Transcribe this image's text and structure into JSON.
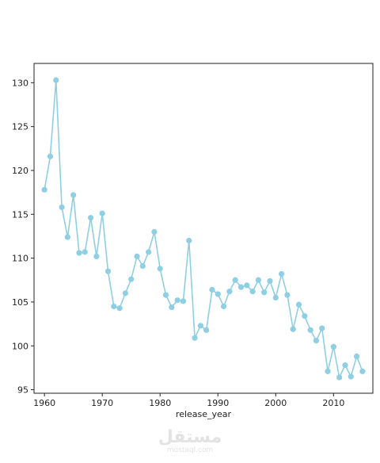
{
  "chart_data": {
    "type": "line",
    "xlabel": "release_year",
    "ylabel": "",
    "xlim": [
      1958.2,
      2016.8
    ],
    "ylim": [
      94.6,
      132.2
    ],
    "xticks": [
      1960,
      1970,
      1980,
      1990,
      2000,
      2010
    ],
    "yticks": [
      95,
      100,
      105,
      110,
      115,
      120,
      125,
      130
    ],
    "grid": false,
    "color": "#8ecfe3",
    "series": [
      {
        "x": [
          1960,
          1961,
          1962,
          1963,
          1964,
          1965,
          1966,
          1967,
          1968,
          1969,
          1970,
          1971,
          1972,
          1973,
          1974,
          1975,
          1976,
          1977,
          1978,
          1979,
          1980,
          1981,
          1982,
          1983,
          1984,
          1985,
          1986,
          1987,
          1988,
          1989,
          1990,
          1991,
          1992,
          1993,
          1994,
          1995,
          1996,
          1997,
          1998,
          1999,
          2000,
          2001,
          2002,
          2003,
          2004,
          2005,
          2006,
          2007,
          2008,
          2009,
          2010,
          2011,
          2012,
          2013,
          2014,
          2015
        ],
        "values": [
          117.8,
          121.6,
          130.3,
          115.8,
          112.4,
          117.2,
          110.6,
          110.7,
          114.6,
          110.2,
          115.1,
          108.5,
          104.5,
          104.3,
          106.0,
          107.6,
          110.2,
          109.1,
          110.7,
          113.0,
          108.8,
          105.8,
          104.4,
          105.2,
          105.1,
          112.0,
          100.9,
          102.3,
          101.8,
          106.4,
          105.9,
          104.5,
          106.2,
          107.5,
          106.7,
          106.9,
          106.2,
          107.5,
          106.1,
          107.4,
          105.5,
          108.2,
          105.8,
          101.9,
          104.7,
          103.4,
          101.8,
          100.6,
          102.0,
          97.1,
          99.9,
          96.4,
          97.8,
          96.5,
          98.8,
          97.1
        ]
      }
    ]
  },
  "watermark": {
    "text": "مستقل",
    "url": "mostaql.com"
  }
}
